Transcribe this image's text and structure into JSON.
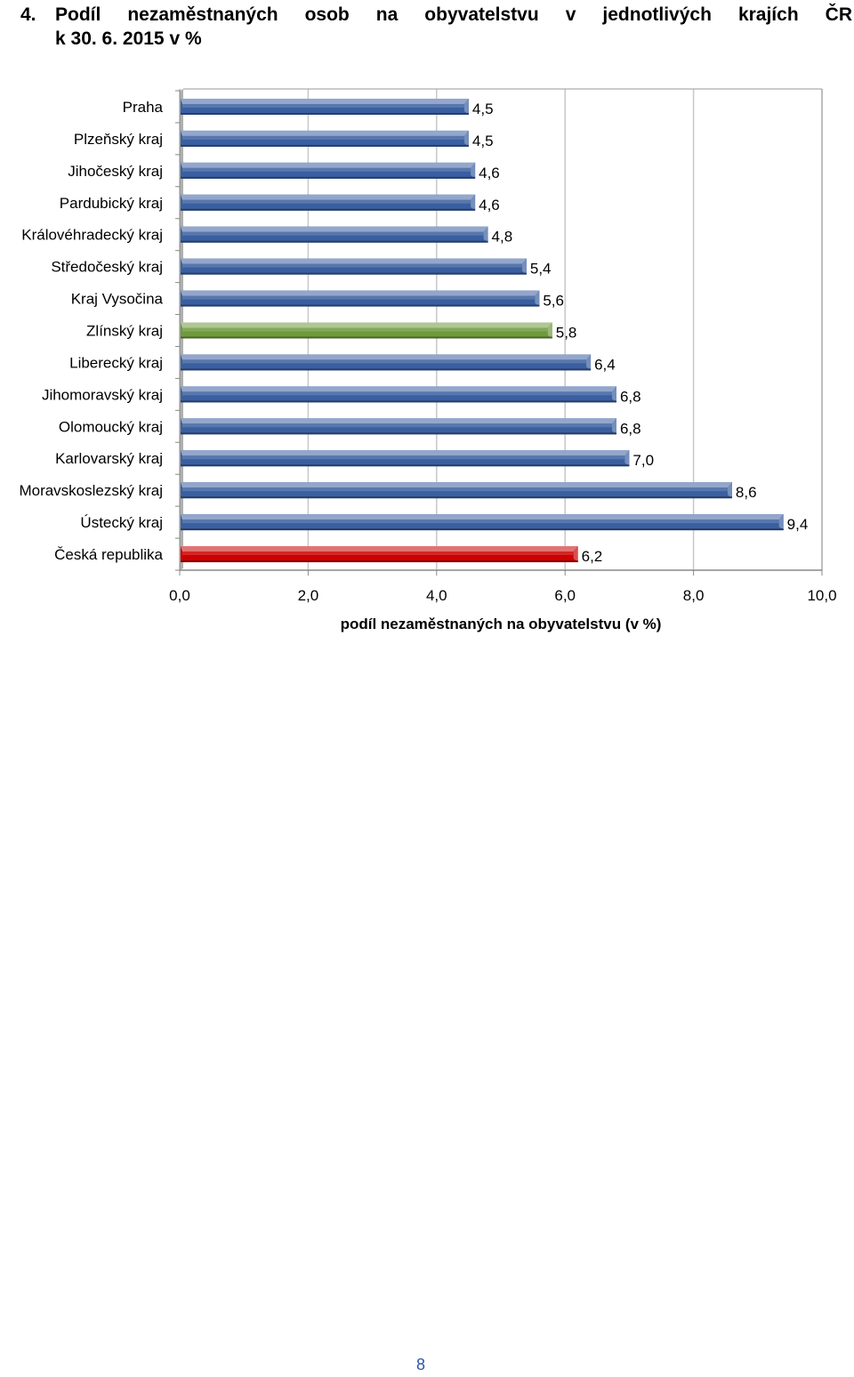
{
  "heading": {
    "number": "4.",
    "line1": "Podíl nezaměstnaných osob na obyvatelstvu v jednotlivých krajích ČR",
    "line2": "k 30. 6. 2015 v %"
  },
  "chart_data": {
    "type": "bar",
    "orientation": "horizontal",
    "categories": [
      "Praha",
      "Plzeňský kraj",
      "Jihočeský kraj",
      "Pardubický kraj",
      "Královéhradecký kraj",
      "Středočeský kraj",
      "Kraj Vysočina",
      "Zlínský kraj",
      "Liberecký kraj",
      "Jihomoravský kraj",
      "Olomoucký kraj",
      "Karlovarský kraj",
      "Moravskoslezský kraj",
      "Ústecký kraj",
      "Česká republika"
    ],
    "values": [
      4.5,
      4.5,
      4.6,
      4.6,
      4.8,
      5.4,
      5.6,
      5.8,
      6.4,
      6.8,
      6.8,
      7.0,
      8.6,
      9.4,
      6.2
    ],
    "value_labels": [
      "4,5",
      "4,5",
      "4,6",
      "4,6",
      "4,8",
      "5,4",
      "5,6",
      "5,8",
      "6,4",
      "6,8",
      "6,8",
      "7,0",
      "8,6",
      "9,4",
      "6,2"
    ],
    "bar_colors": [
      "#3a5fa0",
      "#3a5fa0",
      "#3a5fa0",
      "#3a5fa0",
      "#3a5fa0",
      "#3a5fa0",
      "#3a5fa0",
      "#6e9a3c",
      "#3a5fa0",
      "#3a5fa0",
      "#3a5fa0",
      "#3a5fa0",
      "#3a5fa0",
      "#3a5fa0",
      "#cc0000"
    ],
    "xlim": [
      0,
      10
    ],
    "x_ticks": [
      "0,0",
      "2,0",
      "4,0",
      "6,0",
      "8,0",
      "10,0"
    ],
    "xlabel": "podíl nezaměstnaných na obyvatelstvu (v %)",
    "ylabel": "",
    "title": "",
    "grid": "vertical"
  },
  "footer": {
    "page_number": "8"
  }
}
